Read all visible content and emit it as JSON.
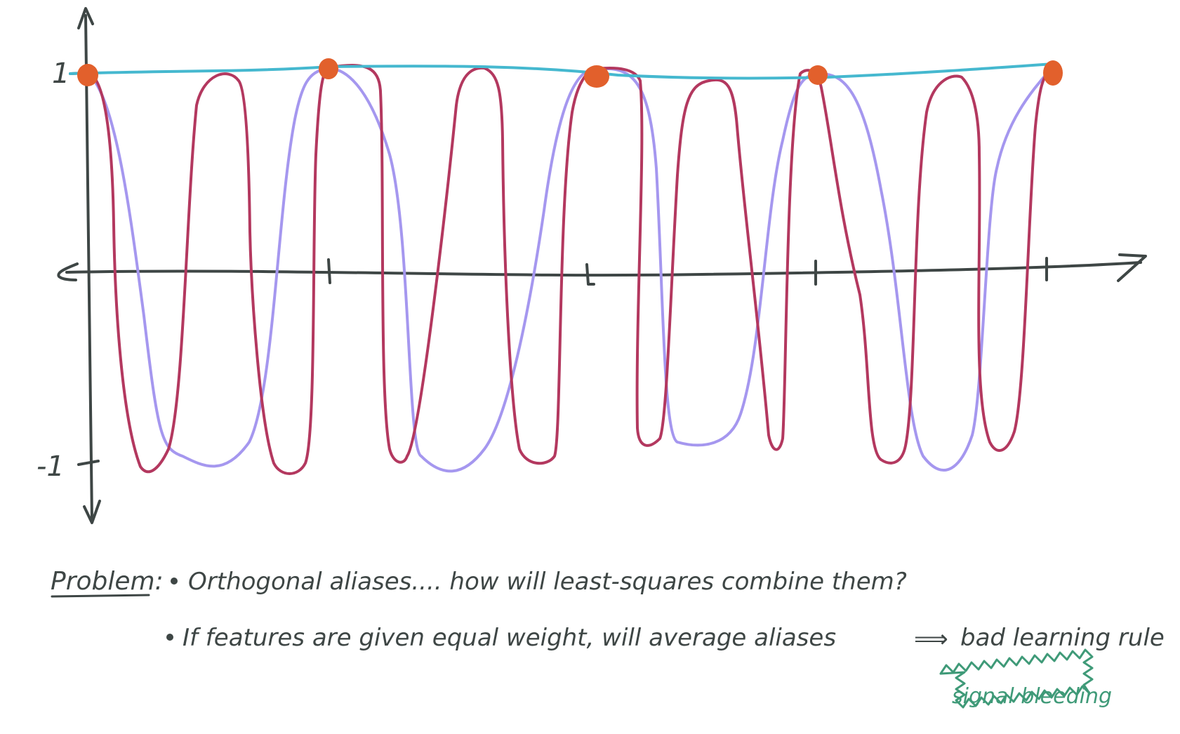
{
  "diagram": {
    "y_axis": {
      "tick_top_label": "1",
      "tick_bottom_label": "-1"
    },
    "sample_points_count": 5,
    "curves": {
      "envelope_color": "#45b8cf",
      "alias_high_color": "#b3385f",
      "alias_low_color": "#a597ef",
      "sample_color": "#e2602c",
      "axis_color": "#3e4645"
    }
  },
  "notes": {
    "problem_label": "Problem:",
    "bullet_1": "Orthogonal aliases.... how will least-squares combine them?",
    "bullet_2": "If features are given equal weight, will average aliases",
    "arrow_text": "⟹",
    "conclusion": "bad learning rule",
    "callout": "signal bleeding",
    "callout_color": "#3f9a78"
  }
}
